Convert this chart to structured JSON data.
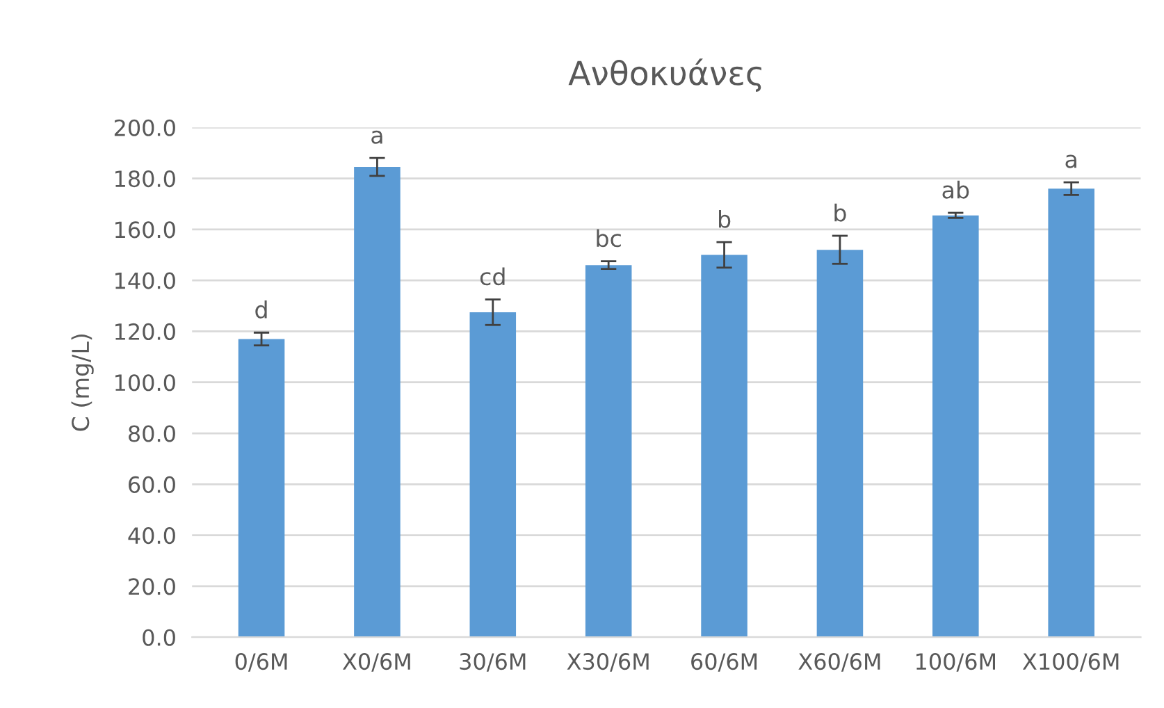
{
  "chart_data": {
    "type": "bar",
    "title": "Ανθοκυάνες",
    "ylabel": "C (mg/L)",
    "categories": [
      "0/6M",
      "X0/6M",
      "30/6M",
      "X30/6M",
      "60/6M",
      "X60/6M",
      "100/6M",
      "X100/6M"
    ],
    "values": [
      117,
      184.5,
      127.5,
      146,
      150,
      152,
      165.5,
      176
    ],
    "errors": [
      2.5,
      3.5,
      5,
      1.5,
      5,
      5.5,
      1,
      2.5
    ],
    "color": "#5b9bd5",
    "ylim": [
      0,
      200
    ],
    "yticks": [
      {
        "value": 0,
        "label": "0.0"
      },
      {
        "value": 20,
        "label": "20.0"
      },
      {
        "value": 40,
        "label": "40.0"
      },
      {
        "value": 60,
        "label": "60.0"
      },
      {
        "value": 80,
        "label": "80.0"
      },
      {
        "value": 100,
        "label": "100.0"
      },
      {
        "value": 120,
        "label": "120.0"
      },
      {
        "value": 140,
        "label": "140.0"
      },
      {
        "value": 160,
        "label": "160.0"
      },
      {
        "value": 180,
        "label": "180.0"
      },
      {
        "value": 200,
        "label": "200.0"
      }
    ],
    "grid": "y",
    "annotations": [
      {
        "text": "d",
        "x": "0/6M",
        "y": 119.5
      },
      {
        "text": "a",
        "x": "X0/6M",
        "y": 188
      },
      {
        "text": "cd",
        "x": "30/6M",
        "y": 132.5
      },
      {
        "text": "bc",
        "x": "X30/6M",
        "y": 147.5
      },
      {
        "text": "b",
        "x": "60/6M",
        "y": 155
      },
      {
        "text": "b",
        "x": "X60/6M",
        "y": 157.5
      },
      {
        "text": "ab",
        "x": "100/6M",
        "y": 166.5
      },
      {
        "text": "a",
        "x": "X100/6M",
        "y": 178.5
      }
    ]
  }
}
